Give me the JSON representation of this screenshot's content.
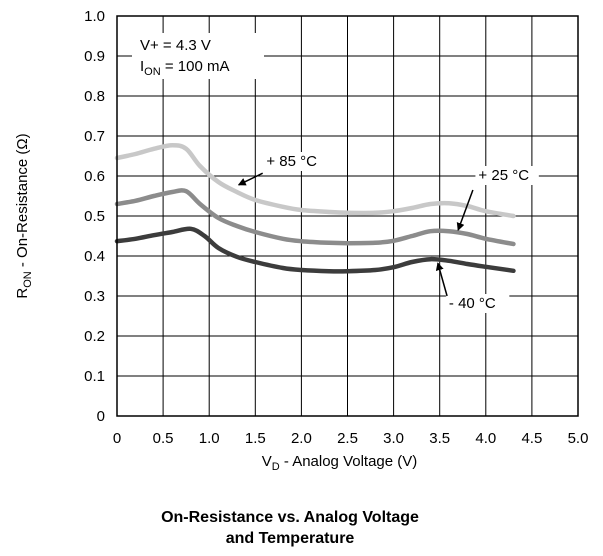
{
  "chart_data": {
    "type": "line",
    "title_line1": "On-Resistance vs. Analog Voltage",
    "title_line2": "and Temperature",
    "xlabel_main": "V",
    "xlabel_sub": "D",
    "xlabel_rest": " - Analog Voltage (V)",
    "ylabel_main": "R",
    "ylabel_sub": "ON",
    "ylabel_rest": " - On-Resistance (Ω)",
    "xlim": [
      0,
      5.0
    ],
    "ylim": [
      0,
      1.0
    ],
    "x_ticks": [
      "0",
      "0.5",
      "1.0",
      "1.5",
      "2.0",
      "2.5",
      "3.0",
      "3.5",
      "4.0",
      "4.5",
      "5.0"
    ],
    "y_ticks": [
      "0",
      "0.1",
      "0.2",
      "0.3",
      "0.4",
      "0.5",
      "0.6",
      "0.7",
      "0.8",
      "0.9",
      "1.0"
    ],
    "grid": true,
    "conditions": {
      "line1": "V+ = 4.3 V",
      "line2_main": "I",
      "line2_sub": "ON",
      "line2_rest": " = 100 mA"
    },
    "series": [
      {
        "name": "+ 85 °C",
        "color": "#c8c8c8",
        "x": [
          0,
          0.2,
          0.4,
          0.6,
          0.75,
          0.9,
          1.1,
          1.3,
          1.5,
          1.8,
          2.0,
          2.3,
          2.5,
          2.8,
          3.0,
          3.2,
          3.4,
          3.6,
          3.8,
          4.0,
          4.3
        ],
        "y": [
          0.645,
          0.655,
          0.668,
          0.677,
          0.668,
          0.625,
          0.585,
          0.56,
          0.54,
          0.523,
          0.515,
          0.51,
          0.508,
          0.508,
          0.512,
          0.52,
          0.53,
          0.532,
          0.525,
          0.512,
          0.5
        ]
      },
      {
        "name": "+ 25 °C",
        "color": "#8c8c8c",
        "x": [
          0,
          0.2,
          0.4,
          0.6,
          0.75,
          0.9,
          1.1,
          1.3,
          1.5,
          1.8,
          2.0,
          2.3,
          2.5,
          2.8,
          3.0,
          3.2,
          3.4,
          3.6,
          3.8,
          4.0,
          4.3
        ],
        "y": [
          0.53,
          0.538,
          0.55,
          0.56,
          0.562,
          0.53,
          0.495,
          0.475,
          0.46,
          0.443,
          0.437,
          0.433,
          0.432,
          0.433,
          0.438,
          0.45,
          0.462,
          0.462,
          0.455,
          0.443,
          0.43
        ]
      },
      {
        "name": "- 40 °C",
        "color": "#3c3c3c",
        "x": [
          0,
          0.2,
          0.4,
          0.6,
          0.8,
          0.95,
          1.1,
          1.3,
          1.5,
          1.8,
          2.0,
          2.3,
          2.5,
          2.8,
          3.0,
          3.2,
          3.4,
          3.6,
          3.8,
          4.0,
          4.3
        ],
        "y": [
          0.437,
          0.443,
          0.452,
          0.46,
          0.468,
          0.45,
          0.42,
          0.398,
          0.385,
          0.37,
          0.365,
          0.362,
          0.362,
          0.365,
          0.372,
          0.385,
          0.392,
          0.388,
          0.38,
          0.373,
          0.363
        ]
      }
    ],
    "annotations": [
      {
        "text": "+ 85 °C",
        "label_x": 1.62,
        "label_y": 0.625,
        "arrow_from": [
          1.58,
          0.607
        ],
        "arrow_to": [
          1.32,
          0.578
        ]
      },
      {
        "text": "+ 25 °C",
        "label_x": 3.92,
        "label_y": 0.59,
        "arrow_from": [
          3.86,
          0.565
        ],
        "arrow_to": [
          3.7,
          0.465
        ]
      },
      {
        "text": "- 40 °C",
        "label_x": 3.6,
        "label_y": 0.27,
        "arrow_from": [
          3.58,
          0.3
        ],
        "arrow_to": [
          3.48,
          0.382
        ]
      }
    ]
  }
}
